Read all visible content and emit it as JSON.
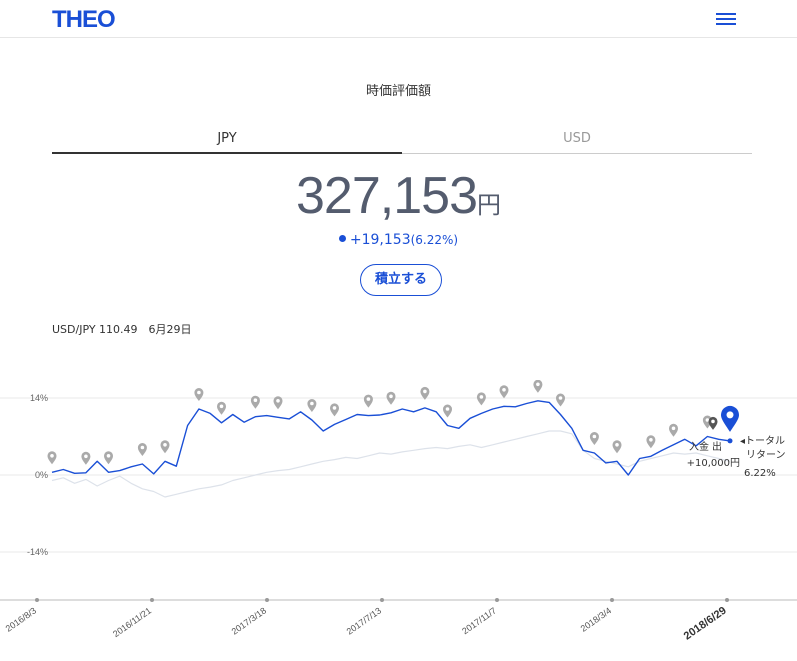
{
  "header": {
    "logo": "THEO"
  },
  "section_title": "時価評価額",
  "tabs": [
    {
      "label": "JPY"
    },
    {
      "label": "USD"
    }
  ],
  "valuation": {
    "amount": "327,153",
    "unit": "円",
    "change": "+19,153",
    "change_pct": "(6.22%)"
  },
  "action_button": "積立する",
  "fx_rate": "USD/JPY 110.49　6月29日",
  "colors": {
    "accent": "#1a4fd6",
    "benchmark": "#dde2ea",
    "marker": "#aaaaaa"
  },
  "chart_data": {
    "type": "line",
    "y_ticks": [
      {
        "label": "14%",
        "value": 14
      },
      {
        "label": "0%",
        "value": 0
      },
      {
        "label": "-14%",
        "value": -14
      }
    ],
    "ylim": [
      -20,
      16
    ],
    "x_labels": [
      "2016/8/3",
      "2016/11/21",
      "2017/3/18",
      "2017/7/13",
      "2017/11/7",
      "2018/3/4",
      "2018/6/29"
    ],
    "series": [
      {
        "values": [
          0.5,
          1.0,
          0.3,
          0.4,
          2.5,
          0.5,
          0.8,
          1.5,
          2.0,
          0.2,
          2.5,
          1.6,
          9.0,
          12.0,
          11.2,
          9.5,
          11.0,
          9.6,
          10.6,
          10.8,
          10.5,
          10.2,
          11.5,
          10.0,
          8.0,
          9.2,
          10.1,
          11.0,
          10.8,
          10.9,
          11.3,
          12.0,
          11.5,
          12.2,
          11.5,
          9.0,
          8.5,
          10.3,
          11.2,
          12.0,
          12.5,
          12.4,
          13.0,
          13.5,
          13.2,
          11.0,
          8.5,
          4.5,
          4.0,
          2.2,
          2.5,
          0.0,
          3.0,
          3.4,
          4.5,
          5.5,
          6.5,
          5.3,
          7.0,
          6.5,
          6.2
        ]
      },
      {
        "values": [
          -1.0,
          -0.5,
          -1.5,
          -0.8,
          -2.0,
          -1.0,
          -0.2,
          -1.5,
          -2.5,
          -3.0,
          -4.0,
          -3.5,
          -3.0,
          -2.5,
          -2.2,
          -1.8,
          -1.0,
          -0.5,
          0.0,
          0.5,
          0.8,
          1.0,
          1.5,
          2.0,
          2.5,
          2.8,
          3.2,
          3.0,
          3.5,
          4.0,
          3.8,
          4.2,
          4.5,
          4.8,
          5.0,
          4.8,
          5.2,
          5.5,
          5.0,
          5.5,
          6.0,
          6.5,
          7.0,
          7.5,
          8.0,
          8.0,
          7.5,
          4.5,
          3.0,
          2.5,
          2.0,
          1.5,
          2.5,
          3.0,
          3.5,
          4.0,
          3.8,
          4.0,
          3.5,
          3.0,
          2.5
        ]
      }
    ],
    "deposit_markers_count": 24,
    "annotations": {
      "deposit": "入金",
      "withdraw": "出",
      "deposit_amount": "+10,000円",
      "total_return_l1": "◂トータル",
      "total_return_l2": "リターン",
      "total_return_value": "6.22%"
    }
  }
}
